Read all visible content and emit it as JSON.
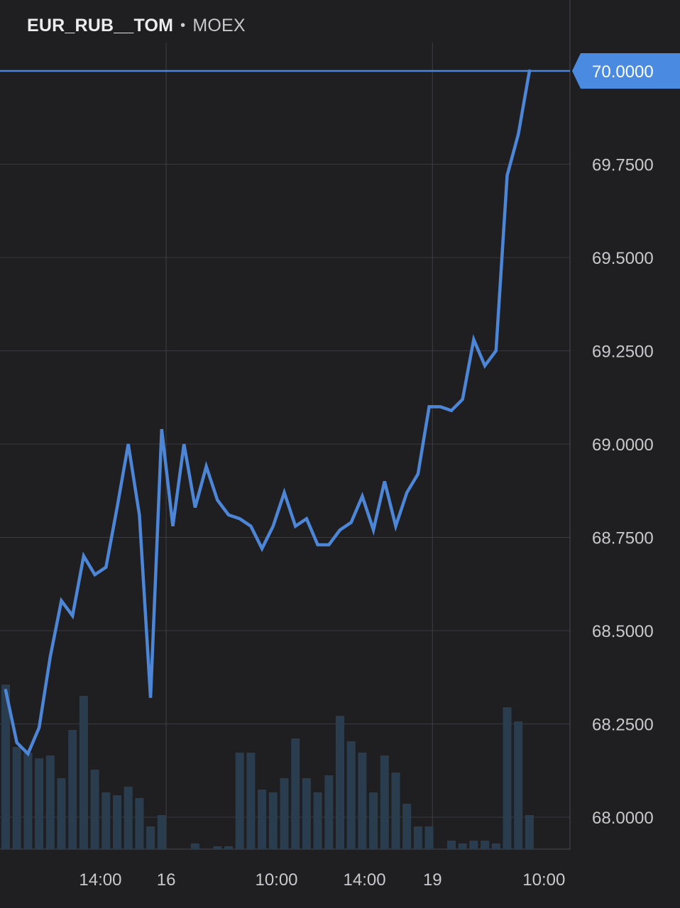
{
  "header": {
    "symbol": "EUR_RUB__TOM",
    "separator": "•",
    "exchange": "MOEX"
  },
  "colors": {
    "background": "#1f1f22",
    "line": "#4d86d6",
    "volume": "#2a3d4f",
    "grid": "#3a3a3e",
    "price_tag": "#4a8ae0"
  },
  "chart_data": {
    "type": "line",
    "price_axis_side": "right",
    "ylim": [
      67.93,
      70.2
    ],
    "y_ticks": [
      "68.0000",
      "68.2500",
      "68.5000",
      "68.7500",
      "69.0000",
      "69.2500",
      "69.5000",
      "69.7500",
      "70.0000"
    ],
    "x_ticks": [
      {
        "label": "14:00",
        "index": 8.5
      },
      {
        "label": "16",
        "index": 14.4
      },
      {
        "label": "10:00",
        "index": 24.3
      },
      {
        "label": "14:00",
        "index": 32.2
      },
      {
        "label": "19",
        "index": 38.3
      },
      {
        "label": "10:00",
        "index": 48.3
      }
    ],
    "vertical_grid_indices": [
      14.4,
      38.3
    ],
    "current_price": 70.0,
    "current_price_label": "70.0000",
    "series": [
      {
        "values": [
          68.34,
          68.2,
          68.17,
          68.24,
          68.43,
          68.58,
          68.54,
          68.7,
          68.65,
          68.67,
          68.83,
          69.0,
          68.81,
          68.32,
          69.04,
          68.78,
          69.0,
          68.83,
          68.94,
          68.85,
          68.81,
          68.8,
          68.78,
          68.72,
          68.78,
          68.87,
          68.78,
          68.8,
          68.73,
          68.73,
          68.77,
          68.79,
          68.86,
          68.77,
          68.9,
          68.78,
          68.87,
          68.92,
          69.1,
          69.1,
          69.09,
          69.12,
          69.28,
          69.21,
          69.25,
          69.72,
          69.83,
          70.0
        ]
      }
    ],
    "volume": [
      0.58,
      0.36,
      0.34,
      0.32,
      0.33,
      0.25,
      0.42,
      0.54,
      0.28,
      0.2,
      0.19,
      0.22,
      0.18,
      0.08,
      0.12,
      0,
      0,
      0.02,
      0,
      0.01,
      0.01,
      0.34,
      0.34,
      0.21,
      0.2,
      0.25,
      0.39,
      0.25,
      0.2,
      0.26,
      0.47,
      0.38,
      0.34,
      0.2,
      0.33,
      0.27,
      0.16,
      0.08,
      0.08,
      0,
      0.03,
      0.02,
      0.03,
      0.03,
      0.02,
      0.5,
      0.45,
      0.12
    ]
  }
}
